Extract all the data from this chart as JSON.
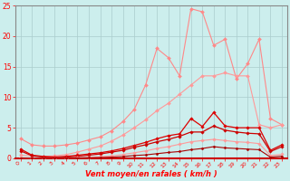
{
  "x": [
    0,
    1,
    2,
    3,
    4,
    5,
    6,
    7,
    8,
    9,
    10,
    11,
    12,
    13,
    14,
    15,
    16,
    17,
    18,
    19,
    20,
    21,
    22,
    23
  ],
  "series": [
    {
      "name": "max_gust_upper",
      "color": "#ff8888",
      "linewidth": 0.8,
      "markersize": 2.0,
      "values": [
        3.2,
        2.2,
        2.0,
        2.0,
        2.2,
        2.5,
        3.0,
        3.5,
        4.5,
        6.0,
        8.0,
        12.0,
        18.0,
        16.5,
        13.5,
        24.5,
        24.0,
        18.5,
        19.5,
        13.0,
        15.5,
        19.5,
        6.5,
        5.5
      ]
    },
    {
      "name": "upper_envelope",
      "color": "#ff9999",
      "linewidth": 0.8,
      "markersize": 2.0,
      "values": [
        0.5,
        0.4,
        0.3,
        0.4,
        0.6,
        1.0,
        1.5,
        2.0,
        2.8,
        3.8,
        5.0,
        6.3,
        7.8,
        9.0,
        10.5,
        12.0,
        13.5,
        13.5,
        14.0,
        13.5,
        13.5,
        5.5,
        5.0,
        5.5
      ]
    },
    {
      "name": "avg_gust",
      "color": "#dd0000",
      "linewidth": 0.9,
      "markersize": 1.8,
      "values": [
        1.5,
        0.5,
        0.3,
        0.2,
        0.3,
        0.5,
        0.7,
        0.9,
        1.2,
        1.6,
        2.1,
        2.6,
        3.2,
        3.7,
        4.0,
        6.5,
        5.2,
        7.5,
        5.3,
        5.0,
        5.0,
        5.0,
        1.3,
        2.2
      ]
    },
    {
      "name": "avg_wind",
      "color": "#cc0000",
      "linewidth": 0.9,
      "markersize": 1.8,
      "values": [
        1.2,
        0.4,
        0.2,
        0.1,
        0.2,
        0.3,
        0.5,
        0.7,
        1.0,
        1.3,
        1.8,
        2.2,
        2.7,
        3.1,
        3.6,
        4.3,
        4.3,
        5.3,
        4.6,
        4.3,
        4.1,
        4.0,
        1.1,
        1.9
      ]
    },
    {
      "name": "lower_envelope",
      "color": "#ff9999",
      "linewidth": 0.8,
      "markersize": 1.8,
      "values": [
        0.08,
        0.04,
        0.02,
        0.02,
        0.04,
        0.08,
        0.15,
        0.25,
        0.4,
        0.6,
        0.9,
        1.2,
        1.6,
        1.9,
        2.3,
        2.7,
        2.9,
        3.1,
        2.9,
        2.7,
        2.6,
        2.4,
        0.45,
        0.65
      ]
    },
    {
      "name": "min_wind",
      "color": "#aa0000",
      "linewidth": 0.8,
      "markersize": 1.5,
      "values": [
        0.04,
        0.01,
        0.005,
        0.005,
        0.01,
        0.04,
        0.08,
        0.12,
        0.18,
        0.28,
        0.45,
        0.55,
        0.75,
        0.95,
        1.1,
        1.4,
        1.6,
        1.9,
        1.7,
        1.6,
        1.5,
        1.4,
        0.18,
        0.35
      ]
    }
  ],
  "xlabel": "Vent moyen/en rafales ( km/h )",
  "xlim_min": -0.5,
  "xlim_max": 23.5,
  "ylim": [
    0,
    25
  ],
  "yticks": [
    0,
    5,
    10,
    15,
    20,
    25
  ],
  "xticks": [
    0,
    1,
    2,
    3,
    4,
    5,
    6,
    7,
    8,
    9,
    10,
    11,
    12,
    13,
    14,
    15,
    16,
    17,
    18,
    19,
    20,
    21,
    22,
    23
  ],
  "bg_color": "#cceeed",
  "grid_color": "#aacccc",
  "tick_color": "#ff0000",
  "label_color": "#ff0000",
  "spine_color": "#cc0000"
}
